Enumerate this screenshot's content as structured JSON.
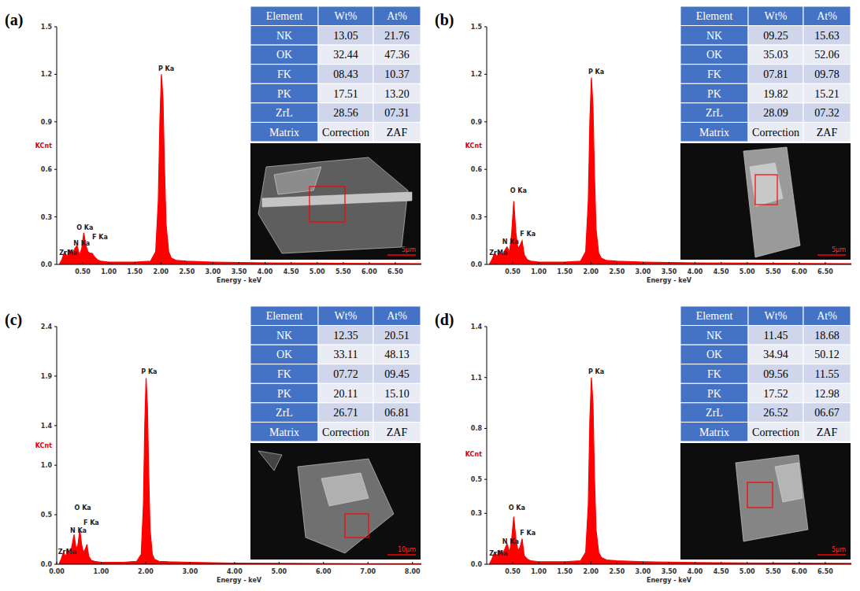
{
  "chart_data": [
    {
      "type": "area",
      "panel_label": "(a)",
      "x_label": "Energy - keV",
      "y_label": "KCnt",
      "color": "#ff0000",
      "x": [
        0.05,
        0.1,
        0.15,
        0.2,
        0.25,
        0.3,
        0.35,
        0.39,
        0.44,
        0.48,
        0.52,
        0.56,
        0.6,
        0.64,
        0.68,
        0.72,
        0.78,
        0.85,
        1.0,
        1.2,
        1.5,
        1.8,
        1.9,
        1.95,
        1.98,
        2.01,
        2.04,
        2.07,
        2.1,
        2.15,
        2.2,
        2.3,
        2.5,
        3.0,
        3.5,
        4.0,
        5.0,
        6.0,
        7.0
      ],
      "values": [
        0,
        0.03,
        0.08,
        0.05,
        0.09,
        0.07,
        0.1,
        0.12,
        0.06,
        0.1,
        0.2,
        0.12,
        0.08,
        0.07,
        0.07,
        0.05,
        0.03,
        0.02,
        0.015,
        0.015,
        0.015,
        0.02,
        0.08,
        0.4,
        0.9,
        1.2,
        1.05,
        0.6,
        0.25,
        0.08,
        0.04,
        0.025,
        0.02,
        0.015,
        0.012,
        0.01,
        0.008,
        0.006,
        0.005
      ],
      "xlim": [
        0,
        7
      ],
      "ylim": [
        0,
        1.5
      ],
      "xticks": [
        {
          "value": 0.5,
          "label": "0.50"
        },
        {
          "value": 1,
          "label": "1.00"
        },
        {
          "value": 1.5,
          "label": "1.50"
        },
        {
          "value": 2,
          "label": "2.00"
        },
        {
          "value": 2.5,
          "label": "2.50"
        },
        {
          "value": 3,
          "label": "3.00"
        },
        {
          "value": 3.5,
          "label": "3.50"
        },
        {
          "value": 4,
          "label": "4.00"
        },
        {
          "value": 4.5,
          "label": "4.50"
        },
        {
          "value": 5,
          "label": "5.00"
        },
        {
          "value": 5.5,
          "label": "5.50"
        },
        {
          "value": 6,
          "label": "6.00"
        },
        {
          "value": 6.5,
          "label": "6.50"
        }
      ],
      "yticks": [
        {
          "value": 0,
          "label": "0.0"
        },
        0.3,
        0.6,
        0.9,
        1.2,
        1.5
      ],
      "annotations": [
        {
          "text": "ZrMa",
          "x": 0.05,
          "y": 0.06
        },
        {
          "text": "N Ka",
          "x": 0.32,
          "y": 0.12
        },
        {
          "text": "O Ka",
          "x": 0.38,
          "y": 0.22
        },
        {
          "text": "F Ka",
          "x": 0.68,
          "y": 0.16
        },
        {
          "text": "P Ka",
          "x": 1.95,
          "y": 1.22
        }
      ],
      "table": {
        "header": [
          "Element",
          "Wt%",
          "At%"
        ],
        "rows": [
          [
            "NK",
            "13.05",
            "21.76"
          ],
          [
            "OK",
            "32.44",
            "47.36"
          ],
          [
            "FK",
            "08.43",
            "10.37"
          ],
          [
            "PK",
            "17.51",
            "13.20"
          ],
          [
            "ZrL",
            "28.56",
            "07.31"
          ],
          [
            "Matrix",
            "Correction",
            "ZAF"
          ]
        ]
      },
      "scale_bar": "5µm"
    },
    {
      "type": "area",
      "panel_label": "(b)",
      "x_label": "Energy - keV",
      "y_label": "KCnt",
      "color": "#ff0000",
      "x": [
        0.05,
        0.1,
        0.15,
        0.2,
        0.25,
        0.3,
        0.35,
        0.39,
        0.44,
        0.48,
        0.52,
        0.56,
        0.6,
        0.64,
        0.68,
        0.72,
        0.78,
        0.85,
        1.0,
        1.2,
        1.5,
        1.8,
        1.9,
        1.95,
        1.98,
        2.01,
        2.04,
        2.07,
        2.1,
        2.15,
        2.2,
        2.3,
        2.5,
        3.0,
        3.5,
        4.0,
        5.0,
        6.0,
        7.0
      ],
      "values": [
        0,
        0.03,
        0.07,
        0.05,
        0.08,
        0.06,
        0.09,
        0.11,
        0.08,
        0.2,
        0.4,
        0.2,
        0.1,
        0.12,
        0.15,
        0.06,
        0.03,
        0.02,
        0.015,
        0.015,
        0.015,
        0.02,
        0.08,
        0.4,
        0.9,
        1.18,
        1.0,
        0.55,
        0.22,
        0.07,
        0.04,
        0.025,
        0.02,
        0.015,
        0.012,
        0.01,
        0.008,
        0.006,
        0.005
      ],
      "xlim": [
        0,
        7
      ],
      "ylim": [
        0,
        1.5
      ],
      "xticks": [
        {
          "value": 0.5,
          "label": "0.50"
        },
        {
          "value": 1,
          "label": "1.00"
        },
        {
          "value": 1.5,
          "label": "1.50"
        },
        {
          "value": 2,
          "label": "2.00"
        },
        {
          "value": 2.5,
          "label": "2.50"
        },
        {
          "value": 3,
          "label": "3.00"
        },
        {
          "value": 3.5,
          "label": "3.50"
        },
        {
          "value": 4,
          "label": "4.00"
        },
        {
          "value": 4.5,
          "label": "4.50"
        },
        {
          "value": 5,
          "label": "5.00"
        },
        {
          "value": 5.5,
          "label": "5.50"
        },
        {
          "value": 6,
          "label": "6.00"
        },
        {
          "value": 6.5,
          "label": "6.50"
        }
      ],
      "yticks": [
        {
          "value": 0,
          "label": "0.0"
        },
        0.3,
        0.6,
        0.9,
        1.2,
        1.5
      ],
      "annotations": [
        {
          "text": "ZrMa",
          "x": 0.05,
          "y": 0.06
        },
        {
          "text": "N Ka",
          "x": 0.3,
          "y": 0.13
        },
        {
          "text": "O Ka",
          "x": 0.45,
          "y": 0.45
        },
        {
          "text": "F Ka",
          "x": 0.64,
          "y": 0.18
        },
        {
          "text": "P Ka",
          "x": 1.95,
          "y": 1.2
        }
      ],
      "table": {
        "header": [
          "Element",
          "Wt%",
          "At%"
        ],
        "rows": [
          [
            "NK",
            "09.25",
            "15.63"
          ],
          [
            "OK",
            "35.03",
            "52.06"
          ],
          [
            "FK",
            "07.81",
            "09.78"
          ],
          [
            "PK",
            "19.82",
            "15.21"
          ],
          [
            "ZrL",
            "28.09",
            "07.32"
          ],
          [
            "Matrix",
            "Correction",
            "ZAF"
          ]
        ]
      },
      "scale_bar": "5µm"
    },
    {
      "type": "area",
      "panel_label": "(c)",
      "x_label": "Energy - keV",
      "y_label": "KCnt",
      "color": "#ff0000",
      "x": [
        0.05,
        0.1,
        0.15,
        0.2,
        0.25,
        0.3,
        0.35,
        0.39,
        0.44,
        0.48,
        0.52,
        0.56,
        0.6,
        0.64,
        0.68,
        0.72,
        0.78,
        0.85,
        1.0,
        1.2,
        1.5,
        1.8,
        1.9,
        1.95,
        1.98,
        2.01,
        2.04,
        2.07,
        2.1,
        2.15,
        2.2,
        2.3,
        2.5,
        3.0,
        3.5,
        4.0,
        5.0,
        6.0,
        7.0,
        8.2
      ],
      "values": [
        0,
        0.05,
        0.12,
        0.08,
        0.15,
        0.1,
        0.2,
        0.3,
        0.15,
        0.2,
        0.35,
        0.2,
        0.12,
        0.15,
        0.2,
        0.08,
        0.04,
        0.03,
        0.02,
        0.02,
        0.02,
        0.03,
        0.1,
        0.6,
        1.4,
        1.88,
        1.6,
        0.9,
        0.35,
        0.1,
        0.05,
        0.03,
        0.025,
        0.02,
        0.015,
        0.012,
        0.01,
        0.008,
        0.006,
        0.005
      ],
      "xlim": [
        0,
        8.2
      ],
      "ylim": [
        0,
        2.4
      ],
      "xticks": [
        {
          "value": 0,
          "label": "0.00"
        },
        {
          "value": 1,
          "label": "1.00"
        },
        {
          "value": 2,
          "label": "2.00"
        },
        {
          "value": 3,
          "label": "3.00"
        },
        {
          "value": 4,
          "label": "4.00"
        },
        {
          "value": 5,
          "label": "5.00"
        },
        {
          "value": 6,
          "label": "6.00"
        },
        {
          "value": 7,
          "label": "7.00"
        },
        {
          "value": 8,
          "label": "8.00"
        }
      ],
      "yticks": [
        {
          "value": 0,
          "label": "0.0"
        },
        0.5,
        {
          "value": 1,
          "label": "1.0"
        },
        1.4,
        1.9,
        2.4
      ],
      "annotations": [
        {
          "text": "ZrMa",
          "x": 0.03,
          "y": 0.1
        },
        {
          "text": "N Ka",
          "x": 0.3,
          "y": 0.32
        },
        {
          "text": "O Ka",
          "x": 0.4,
          "y": 0.55
        },
        {
          "text": "F Ka",
          "x": 0.6,
          "y": 0.4
        },
        {
          "text": "P Ka",
          "x": 1.9,
          "y": 1.92
        }
      ],
      "table": {
        "header": [
          "Element",
          "Wt%",
          "At%"
        ],
        "rows": [
          [
            "NK",
            "12.35",
            "20.51"
          ],
          [
            "OK",
            "33.11",
            "48.13"
          ],
          [
            "FK",
            "07.72",
            "09.45"
          ],
          [
            "PK",
            "20.11",
            "15.10"
          ],
          [
            "ZrL",
            "26.71",
            "06.81"
          ],
          [
            "Matrix",
            "Correction",
            "ZAF"
          ]
        ]
      },
      "scale_bar": "10µm"
    },
    {
      "type": "area",
      "panel_label": "(d)",
      "x_label": "Energy - keV",
      "y_label": "KCnt",
      "color": "#ff0000",
      "x": [
        0.05,
        0.1,
        0.15,
        0.2,
        0.25,
        0.3,
        0.35,
        0.39,
        0.44,
        0.48,
        0.52,
        0.56,
        0.6,
        0.64,
        0.68,
        0.72,
        0.78,
        0.85,
        1.0,
        1.2,
        1.5,
        1.8,
        1.9,
        1.95,
        1.98,
        2.01,
        2.04,
        2.07,
        2.1,
        2.15,
        2.2,
        2.3,
        2.5,
        3.0,
        3.5,
        4.0,
        5.0,
        6.0,
        7.0
      ],
      "values": [
        0,
        0.03,
        0.07,
        0.05,
        0.08,
        0.06,
        0.09,
        0.12,
        0.07,
        0.15,
        0.28,
        0.15,
        0.08,
        0.1,
        0.15,
        0.05,
        0.03,
        0.02,
        0.015,
        0.015,
        0.015,
        0.02,
        0.07,
        0.35,
        0.85,
        1.1,
        0.95,
        0.5,
        0.2,
        0.07,
        0.04,
        0.025,
        0.02,
        0.015,
        0.012,
        0.01,
        0.008,
        0.006,
        0.005
      ],
      "xlim": [
        0,
        7
      ],
      "ylim": [
        0,
        1.4
      ],
      "xticks": [
        {
          "value": 0.5,
          "label": "0.50"
        },
        {
          "value": 1,
          "label": "1.00"
        },
        {
          "value": 1.5,
          "label": "1.50"
        },
        {
          "value": 2,
          "label": "2.00"
        },
        {
          "value": 2.5,
          "label": "2.50"
        },
        {
          "value": 3,
          "label": "3.00"
        },
        {
          "value": 3.5,
          "label": "3.50"
        },
        {
          "value": 4,
          "label": "4.00"
        },
        {
          "value": 4.5,
          "label": "4.50"
        },
        {
          "value": 5,
          "label": "5.00"
        },
        {
          "value": 5.5,
          "label": "5.50"
        },
        {
          "value": 6,
          "label": "6.00"
        },
        {
          "value": 6.5,
          "label": "6.50"
        }
      ],
      "yticks": [
        {
          "value": 0,
          "label": "0.0"
        },
        0.3,
        0.5,
        0.8,
        1.1,
        1.4
      ],
      "annotations": [
        {
          "text": "ZrMa",
          "x": 0.05,
          "y": 0.05
        },
        {
          "text": "N Ka",
          "x": 0.3,
          "y": 0.12
        },
        {
          "text": "O Ka",
          "x": 0.42,
          "y": 0.32
        },
        {
          "text": "F Ka",
          "x": 0.64,
          "y": 0.17
        },
        {
          "text": "P Ka",
          "x": 1.95,
          "y": 1.12
        }
      ],
      "table": {
        "header": [
          "Element",
          "Wt%",
          "At%"
        ],
        "rows": [
          [
            "NK",
            "11.45",
            "18.68"
          ],
          [
            "OK",
            "34.94",
            "50.12"
          ],
          [
            "FK",
            "09.56",
            "11.55"
          ],
          [
            "PK",
            "17.52",
            "12.98"
          ],
          [
            "ZrL",
            "26.52",
            "06.67"
          ],
          [
            "Matrix",
            "Correction",
            "ZAF"
          ]
        ]
      },
      "scale_bar": "5µm"
    }
  ]
}
